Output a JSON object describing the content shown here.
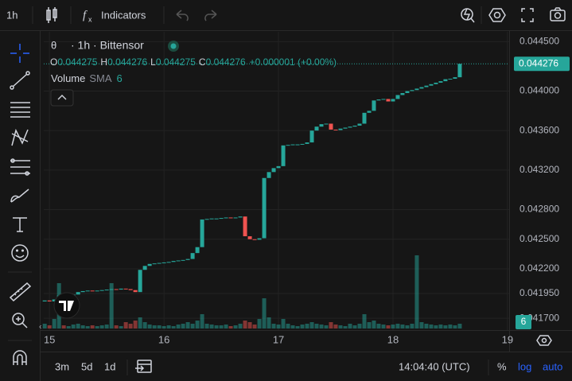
{
  "toolbar": {
    "interval": "1h",
    "indicators": "Indicators"
  },
  "legend": {
    "symbol": "θ",
    "title": "· 1h · Bittensor",
    "open_label": "O",
    "open": "0.044275",
    "high_label": "H",
    "high": "0.044276",
    "low_label": "L",
    "low": "0.044275",
    "close_label": "C",
    "close": "0.044276",
    "change": "+0.000001 (+0.00%)",
    "volume": "Volume",
    "sma": "SMA",
    "sma_length": "6"
  },
  "bottom_bar": {
    "ranges": [
      "3m",
      "5d",
      "1d"
    ],
    "clock": "14:04:40 (UTC)",
    "percent": "%",
    "log": "log",
    "auto": "auto"
  },
  "chart_data": {
    "type": "candlestick",
    "up_color": "#26a69a",
    "down_color": "#ef5350",
    "grid": true,
    "log_scale": false,
    "xlim": [
      14.95,
      19.0146
    ],
    "xticks": [
      15,
      16,
      17,
      18,
      19
    ],
    "ylim": [
      0.04158,
      0.0446
    ],
    "yticks": [
      {
        "value": 0.0445,
        "label": "0.044500"
      },
      {
        "value": 0.044,
        "label": "0.044000"
      },
      {
        "value": 0.0436,
        "label": "0.043600"
      },
      {
        "value": 0.0432,
        "label": "0.043200"
      },
      {
        "value": 0.0428,
        "label": "0.042800"
      },
      {
        "value": 0.0425,
        "label": "0.042500"
      },
      {
        "value": 0.0422,
        "label": "0.042200"
      },
      {
        "value": 0.04195,
        "label": "0.041950"
      },
      {
        "value": 0.0417,
        "label": "0.041700"
      }
    ],
    "x": [
      14.9583,
      15,
      15.0417,
      15.0833,
      15.125,
      15.1667,
      15.2083,
      15.25,
      15.2917,
      15.3333,
      15.375,
      15.4167,
      15.4583,
      15.5,
      15.5417,
      15.5833,
      15.625,
      15.6667,
      15.7083,
      15.75,
      15.7917,
      15.8333,
      15.875,
      15.9167,
      15.9583,
      16,
      16.0417,
      16.0833,
      16.125,
      16.1667,
      16.2083,
      16.25,
      16.2917,
      16.3333,
      16.375,
      16.4167,
      16.4583,
      16.5,
      16.5417,
      16.5833,
      16.625,
      16.6667,
      16.7083,
      16.75,
      16.7917,
      16.8333,
      16.875,
      16.9167,
      16.9583,
      17,
      17.0417,
      17.0833,
      17.125,
      17.1667,
      17.2083,
      17.25,
      17.2917,
      17.3333,
      17.375,
      17.4167,
      17.4583,
      17.5,
      17.5417,
      17.5833,
      17.625,
      17.6667,
      17.7083,
      17.75,
      17.7917,
      17.8333,
      17.875,
      17.9167,
      17.9583,
      18,
      18.0417,
      18.0833,
      18.125,
      18.1667,
      18.2083,
      18.25,
      18.2917,
      18.3333,
      18.375,
      18.4167,
      18.4583,
      18.5,
      18.5417,
      18.5833
    ],
    "open": [
      0.04187,
      0.04188,
      0.04187,
      0.04189,
      0.04193,
      0.041925,
      0.04193,
      0.04194,
      0.041965,
      0.041975,
      0.04198,
      0.041975,
      0.04198,
      0.041985,
      0.04199,
      0.041995,
      0.04199,
      0.042,
      0.041995,
      0.041985,
      0.041965,
      0.04219,
      0.04223,
      0.04225,
      0.042255,
      0.04226,
      0.042265,
      0.04227,
      0.04228,
      0.042285,
      0.04229,
      0.0423,
      0.04236,
      0.04242,
      0.0427,
      0.042705,
      0.04271,
      0.04271,
      0.042715,
      0.04272,
      0.042715,
      0.04272,
      0.04273,
      0.04253,
      0.0425,
      0.042495,
      0.04251,
      0.04312,
      0.04318,
      0.04322,
      0.04324,
      0.04345,
      0.043455,
      0.04346,
      0.04346,
      0.043465,
      0.04348,
      0.0436,
      0.04364,
      0.043665,
      0.04367,
      0.04361,
      0.043605,
      0.04362,
      0.04363,
      0.04364,
      0.04365,
      0.04367,
      0.04378,
      0.0438,
      0.043905,
      0.043915,
      0.04392,
      0.043895,
      0.04392,
      0.04396,
      0.04398,
      0.044,
      0.04401,
      0.044025,
      0.04404,
      0.044055,
      0.04407,
      0.044085,
      0.0441,
      0.04412,
      0.044125,
      0.04414
    ],
    "close": [
      0.04188,
      0.04187,
      0.04189,
      0.04193,
      0.041925,
      0.04193,
      0.04194,
      0.041965,
      0.041975,
      0.04198,
      0.041975,
      0.04198,
      0.041985,
      0.04199,
      0.041995,
      0.04199,
      0.042,
      0.041995,
      0.041985,
      0.041965,
      0.04219,
      0.04223,
      0.04225,
      0.042255,
      0.04226,
      0.042265,
      0.04227,
      0.04228,
      0.042285,
      0.04229,
      0.0423,
      0.04236,
      0.04242,
      0.0427,
      0.042705,
      0.04271,
      0.04271,
      0.042715,
      0.04272,
      0.042715,
      0.04272,
      0.04273,
      0.04253,
      0.0425,
      0.042495,
      0.04251,
      0.04312,
      0.04318,
      0.04322,
      0.04324,
      0.04345,
      0.043455,
      0.04346,
      0.04346,
      0.043465,
      0.04348,
      0.0436,
      0.04364,
      0.043665,
      0.04367,
      0.04361,
      0.043605,
      0.04362,
      0.04363,
      0.04364,
      0.04365,
      0.04367,
      0.04378,
      0.0438,
      0.043905,
      0.043915,
      0.04392,
      0.043895,
      0.04392,
      0.04396,
      0.04398,
      0.044,
      0.04401,
      0.044025,
      0.04404,
      0.044055,
      0.04407,
      0.044085,
      0.0441,
      0.04412,
      0.044125,
      0.04414,
      0.044276
    ],
    "volume": [
      6,
      4,
      12,
      57,
      4,
      3,
      5,
      6,
      4,
      3,
      4,
      3,
      4,
      5,
      57,
      4,
      3,
      8,
      6,
      10,
      14,
      8,
      5,
      4,
      4,
      3,
      4,
      3,
      5,
      6,
      8,
      6,
      10,
      18,
      6,
      5,
      4,
      4,
      5,
      3,
      4,
      6,
      10,
      8,
      5,
      12,
      38,
      14,
      6,
      5,
      12,
      6,
      4,
      3,
      5,
      6,
      8,
      6,
      5,
      4,
      8,
      5,
      4,
      3,
      6,
      4,
      6,
      18,
      8,
      10,
      6,
      5,
      4,
      5,
      6,
      5,
      4,
      6,
      92,
      8,
      6,
      5,
      4,
      5,
      4,
      5,
      4,
      6
    ]
  }
}
